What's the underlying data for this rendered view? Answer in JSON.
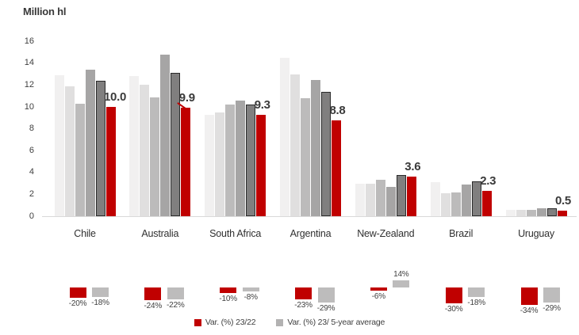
{
  "title": "Million hl",
  "colors": {
    "red": "#c00000",
    "grey_shades": [
      "#f1f0f0",
      "#e0dfdf",
      "#bcbbbb",
      "#a6a5a5",
      "#807f7f"
    ],
    "dark_bar_border": "#2a2a2a",
    "axis_line": "#d9d9d9",
    "text": "#404040",
    "mini_grey": "#bdbcbc",
    "legend_grey": "#b3b2b2"
  },
  "chart_data": [
    {
      "type": "bar",
      "title": "Million hl",
      "ylabel": "Million hl",
      "categories": [
        "Chile",
        "Australia",
        "South Africa",
        "Argentina",
        "New-Zealand",
        "Brazil",
        "Uruguay"
      ],
      "series": [
        {
          "color": "#f1f0f0",
          "values": [
            12.9,
            12.8,
            9.3,
            14.5,
            3.0,
            3.1,
            0.6
          ]
        },
        {
          "color": "#e0dfdf",
          "values": [
            11.9,
            12.0,
            9.5,
            13.0,
            3.0,
            2.1,
            0.6
          ]
        },
        {
          "color": "#bcbbbb",
          "values": [
            10.3,
            10.9,
            10.2,
            10.8,
            3.3,
            2.2,
            0.6
          ]
        },
        {
          "color": "#a6a5a5",
          "values": [
            13.4,
            14.8,
            10.6,
            12.5,
            2.7,
            2.9,
            0.7
          ]
        },
        {
          "color": "#807f7f",
          "values": [
            12.4,
            13.1,
            10.2,
            11.4,
            3.8,
            3.2,
            0.7
          ]
        },
        {
          "color": "#c00000",
          "values": [
            10.0,
            9.9,
            9.3,
            8.8,
            3.6,
            2.3,
            0.5
          ]
        }
      ],
      "value_labels": [
        "10.0",
        "9.9",
        "9.3",
        "8.8",
        "3.6",
        "2.3",
        "0.5"
      ],
      "ylim": [
        0,
        16
      ],
      "yticks": [
        0,
        2,
        4,
        6,
        8,
        10,
        12,
        14,
        16
      ],
      "grid": false,
      "legend_position": "none"
    },
    {
      "type": "bar",
      "categories": [
        "Chile",
        "Australia",
        "South Africa",
        "Argentina",
        "New-Zealand",
        "Brazil",
        "Uruguay"
      ],
      "series": [
        {
          "name": "Var. (%) 23/22",
          "color": "#c00000",
          "values": [
            -20,
            -24,
            -10,
            -23,
            -6,
            -30,
            -34
          ]
        },
        {
          "name": "Var. (%) 23/ 5-year average",
          "color": "#bdbcbc",
          "values": [
            -18,
            -22,
            -8,
            -29,
            14,
            -18,
            -29
          ]
        }
      ],
      "value_labels": [
        [
          "-20%",
          "-18%"
        ],
        [
          "-24%",
          "-22%"
        ],
        [
          "-10%",
          "-8%"
        ],
        [
          "-23%",
          "-29%"
        ],
        [
          "-6%",
          "14%"
        ],
        [
          "-30%",
          "-18%"
        ],
        [
          "-34%",
          "-29%"
        ]
      ],
      "unit": "%",
      "legend_position": "bottom-center"
    }
  ]
}
